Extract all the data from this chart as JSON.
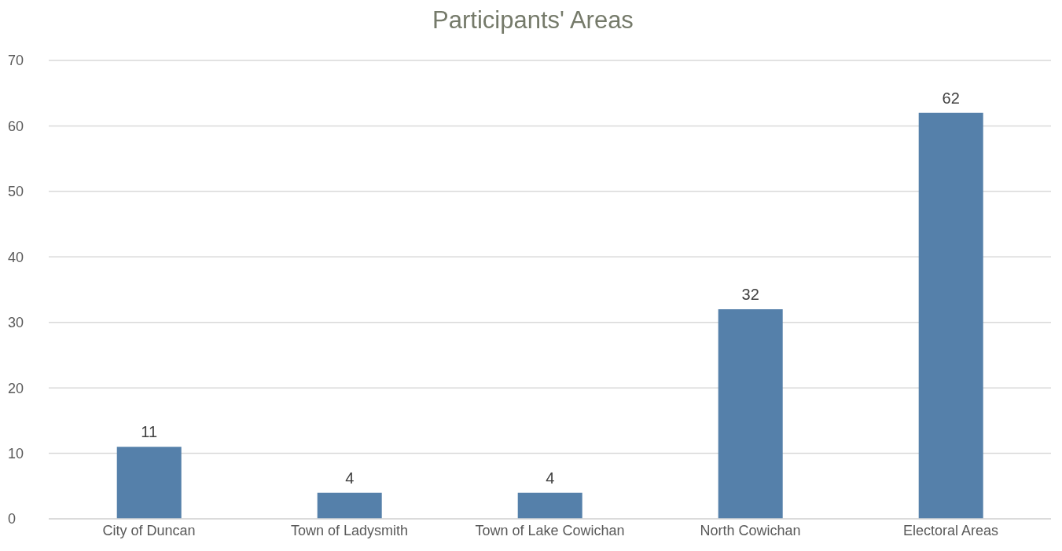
{
  "chart_data": {
    "type": "bar",
    "title": "Participants' Areas",
    "categories": [
      "City of Duncan",
      "Town of Ladysmith",
      "Town of Lake Cowichan",
      "North Cowichan",
      "Electoral Areas"
    ],
    "values": [
      11,
      4,
      4,
      32,
      62
    ],
    "color": "#5580aa",
    "ylim": [
      0,
      70
    ],
    "yticks": [
      0,
      10,
      20,
      30,
      40,
      50,
      60,
      70
    ],
    "grid": "y",
    "data_labels": true
  }
}
